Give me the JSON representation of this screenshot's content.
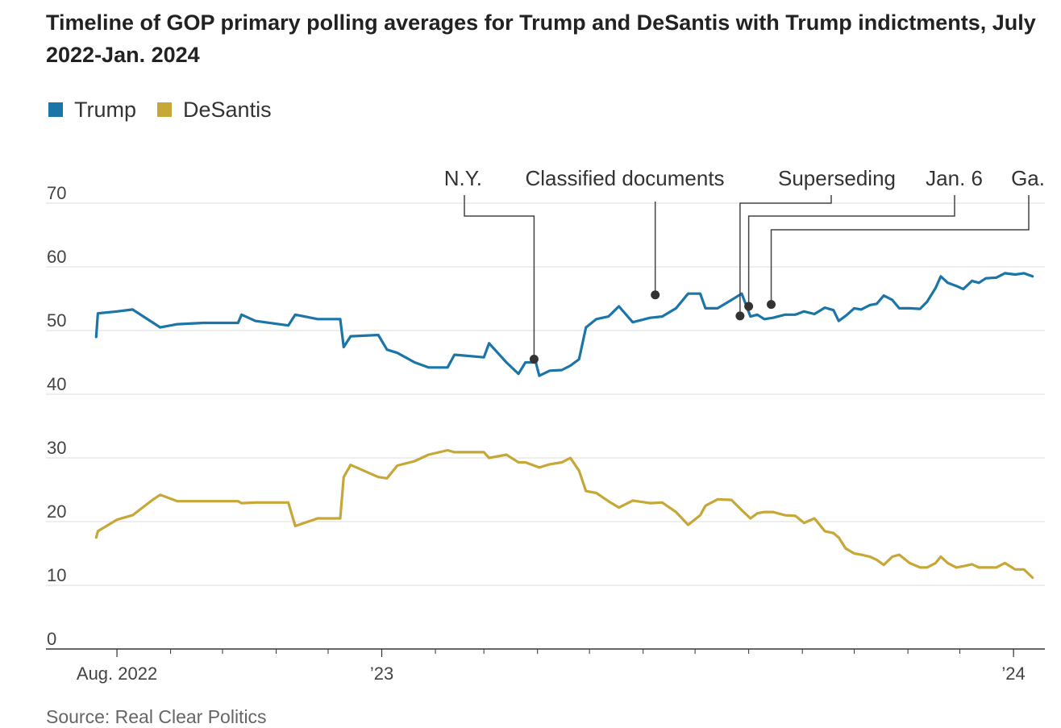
{
  "title": "Timeline of GOP primary polling averages for Trump and DeSantis with Trump indictments, July 2022-Jan. 2024",
  "source": "Source: Real Clear Politics",
  "chart_data": {
    "type": "line",
    "title": "Timeline of GOP primary polling averages for Trump and DeSantis with Trump indictments, July 2022-Jan. 2024",
    "xlabel": "",
    "ylabel": "",
    "ylim": [
      0,
      70
    ],
    "xlim": [
      "2022-07-18",
      "2024-01-14"
    ],
    "grid": true,
    "legend_position": "top-left",
    "y_ticks": [
      "0",
      "10",
      "20",
      "30",
      "40",
      "50",
      "60",
      "70"
    ],
    "x_ticks": [
      {
        "date": "2022-08-01",
        "label": "Aug. 2022"
      },
      {
        "date": "2023-01-01",
        "label": "’23"
      },
      {
        "date": "2024-01-01",
        "label": "’24"
      }
    ],
    "series": [
      {
        "name": "Trump",
        "color": "#1b75a8",
        "points": [
          [
            "2022-07-20",
            49.0
          ],
          [
            "2022-07-21",
            52.7
          ],
          [
            "2022-08-01",
            53.0
          ],
          [
            "2022-08-10",
            53.3
          ],
          [
            "2022-08-22",
            51.2
          ],
          [
            "2022-08-26",
            50.5
          ],
          [
            "2022-09-05",
            51.0
          ],
          [
            "2022-09-20",
            51.2
          ],
          [
            "2022-10-10",
            51.2
          ],
          [
            "2022-10-12",
            52.5
          ],
          [
            "2022-10-20",
            51.5
          ],
          [
            "2022-11-08",
            50.8
          ],
          [
            "2022-11-12",
            52.5
          ],
          [
            "2022-11-25",
            51.8
          ],
          [
            "2022-12-08",
            51.8
          ],
          [
            "2022-12-10",
            47.4
          ],
          [
            "2022-12-14",
            49.1
          ],
          [
            "2022-12-30",
            49.3
          ],
          [
            "2023-01-04",
            47.0
          ],
          [
            "2023-01-10",
            46.5
          ],
          [
            "2023-01-20",
            45.0
          ],
          [
            "2023-01-28",
            44.2
          ],
          [
            "2023-02-08",
            44.2
          ],
          [
            "2023-02-12",
            46.2
          ],
          [
            "2023-03-01",
            45.8
          ],
          [
            "2023-03-04",
            48.0
          ],
          [
            "2023-03-14",
            45.0
          ],
          [
            "2023-03-21",
            43.2
          ],
          [
            "2023-03-25",
            45.0
          ],
          [
            "2023-03-31",
            45.0
          ],
          [
            "2023-04-02",
            42.9
          ],
          [
            "2023-04-08",
            43.7
          ],
          [
            "2023-04-15",
            43.8
          ],
          [
            "2023-04-20",
            44.5
          ],
          [
            "2023-04-25",
            45.5
          ],
          [
            "2023-04-29",
            50.5
          ],
          [
            "2023-05-05",
            51.8
          ],
          [
            "2023-05-12",
            52.2
          ],
          [
            "2023-05-18",
            53.8
          ],
          [
            "2023-05-26",
            51.3
          ],
          [
            "2023-06-05",
            52.0
          ],
          [
            "2023-06-12",
            52.2
          ],
          [
            "2023-06-20",
            53.5
          ],
          [
            "2023-06-27",
            55.8
          ],
          [
            "2023-07-04",
            55.8
          ],
          [
            "2023-07-07",
            53.5
          ],
          [
            "2023-07-14",
            53.5
          ],
          [
            "2023-07-22",
            54.8
          ],
          [
            "2023-07-28",
            55.8
          ],
          [
            "2023-08-02",
            52.2
          ],
          [
            "2023-08-06",
            52.5
          ],
          [
            "2023-08-10",
            51.8
          ],
          [
            "2023-08-15",
            52.0
          ],
          [
            "2023-08-22",
            52.5
          ],
          [
            "2023-08-28",
            52.5
          ],
          [
            "2023-09-02",
            53.0
          ],
          [
            "2023-09-08",
            52.6
          ],
          [
            "2023-09-14",
            53.6
          ],
          [
            "2023-09-19",
            53.2
          ],
          [
            "2023-09-22",
            51.5
          ],
          [
            "2023-09-26",
            52.3
          ],
          [
            "2023-10-01",
            53.5
          ],
          [
            "2023-10-05",
            53.3
          ],
          [
            "2023-10-10",
            54.0
          ],
          [
            "2023-10-14",
            54.2
          ],
          [
            "2023-10-18",
            55.5
          ],
          [
            "2023-10-23",
            54.8
          ],
          [
            "2023-10-27",
            53.5
          ],
          [
            "2023-11-02",
            53.5
          ],
          [
            "2023-11-08",
            53.4
          ],
          [
            "2023-11-12",
            54.5
          ],
          [
            "2023-11-17",
            56.7
          ],
          [
            "2023-11-20",
            58.5
          ],
          [
            "2023-11-24",
            57.5
          ],
          [
            "2023-11-29",
            57.0
          ],
          [
            "2023-12-03",
            56.5
          ],
          [
            "2023-12-08",
            57.8
          ],
          [
            "2023-12-12",
            57.5
          ],
          [
            "2023-12-16",
            58.2
          ],
          [
            "2023-12-22",
            58.3
          ],
          [
            "2023-12-27",
            59.0
          ],
          [
            "2024-01-02",
            58.8
          ],
          [
            "2024-01-07",
            59.0
          ],
          [
            "2024-01-12",
            58.5
          ]
        ]
      },
      {
        "name": "DeSantis",
        "color": "#c6a738",
        "points": [
          [
            "2022-07-20",
            17.5
          ],
          [
            "2022-07-21",
            18.5
          ],
          [
            "2022-08-01",
            20.3
          ],
          [
            "2022-08-10",
            21.0
          ],
          [
            "2022-08-22",
            23.5
          ],
          [
            "2022-08-26",
            24.2
          ],
          [
            "2022-09-05",
            23.2
          ],
          [
            "2022-09-20",
            23.2
          ],
          [
            "2022-10-10",
            23.2
          ],
          [
            "2022-10-12",
            22.9
          ],
          [
            "2022-10-20",
            23.0
          ],
          [
            "2022-11-08",
            23.0
          ],
          [
            "2022-11-12",
            19.3
          ],
          [
            "2022-11-25",
            20.5
          ],
          [
            "2022-12-08",
            20.5
          ],
          [
            "2022-12-10",
            27.0
          ],
          [
            "2022-12-14",
            28.9
          ],
          [
            "2022-12-30",
            27.0
          ],
          [
            "2023-01-04",
            26.8
          ],
          [
            "2023-01-10",
            28.8
          ],
          [
            "2023-01-20",
            29.5
          ],
          [
            "2023-01-28",
            30.5
          ],
          [
            "2023-02-08",
            31.2
          ],
          [
            "2023-02-12",
            30.9
          ],
          [
            "2023-03-01",
            30.9
          ],
          [
            "2023-03-04",
            30.0
          ],
          [
            "2023-03-14",
            30.5
          ],
          [
            "2023-03-21",
            29.3
          ],
          [
            "2023-03-25",
            29.3
          ],
          [
            "2023-03-31",
            28.7
          ],
          [
            "2023-04-02",
            28.5
          ],
          [
            "2023-04-08",
            29.0
          ],
          [
            "2023-04-15",
            29.3
          ],
          [
            "2023-04-20",
            30.0
          ],
          [
            "2023-04-25",
            28.0
          ],
          [
            "2023-04-29",
            24.8
          ],
          [
            "2023-05-05",
            24.5
          ],
          [
            "2023-05-12",
            23.2
          ],
          [
            "2023-05-18",
            22.2
          ],
          [
            "2023-05-26",
            23.3
          ],
          [
            "2023-06-05",
            22.9
          ],
          [
            "2023-06-12",
            23.0
          ],
          [
            "2023-06-20",
            21.5
          ],
          [
            "2023-06-27",
            19.5
          ],
          [
            "2023-07-04",
            21.0
          ],
          [
            "2023-07-07",
            22.5
          ],
          [
            "2023-07-14",
            23.5
          ],
          [
            "2023-07-22",
            23.4
          ],
          [
            "2023-07-28",
            21.8
          ],
          [
            "2023-08-02",
            20.5
          ],
          [
            "2023-08-06",
            21.3
          ],
          [
            "2023-08-10",
            21.5
          ],
          [
            "2023-08-15",
            21.5
          ],
          [
            "2023-08-22",
            21.0
          ],
          [
            "2023-08-28",
            20.9
          ],
          [
            "2023-09-02",
            19.8
          ],
          [
            "2023-09-08",
            20.5
          ],
          [
            "2023-09-14",
            18.5
          ],
          [
            "2023-09-19",
            18.2
          ],
          [
            "2023-09-22",
            17.5
          ],
          [
            "2023-09-26",
            15.8
          ],
          [
            "2023-10-01",
            15.0
          ],
          [
            "2023-10-05",
            14.8
          ],
          [
            "2023-10-10",
            14.5
          ],
          [
            "2023-10-14",
            14.0
          ],
          [
            "2023-10-18",
            13.2
          ],
          [
            "2023-10-23",
            14.5
          ],
          [
            "2023-10-27",
            14.8
          ],
          [
            "2023-11-02",
            13.5
          ],
          [
            "2023-11-08",
            12.8
          ],
          [
            "2023-11-12",
            12.8
          ],
          [
            "2023-11-17",
            13.5
          ],
          [
            "2023-11-20",
            14.5
          ],
          [
            "2023-11-24",
            13.5
          ],
          [
            "2023-11-29",
            12.8
          ],
          [
            "2023-12-03",
            13.0
          ],
          [
            "2023-12-08",
            13.3
          ],
          [
            "2023-12-12",
            12.8
          ],
          [
            "2023-12-16",
            12.8
          ],
          [
            "2023-12-22",
            12.8
          ],
          [
            "2023-12-27",
            13.5
          ],
          [
            "2024-01-02",
            12.5
          ],
          [
            "2024-01-07",
            12.5
          ],
          [
            "2024-01-12",
            11.2
          ]
        ]
      }
    ],
    "annotations": [
      {
        "label": "N.Y.",
        "date": "2023-03-30",
        "value": 45.5
      },
      {
        "label": "Classified documents",
        "date": "2023-06-08",
        "value": 55.6
      },
      {
        "label": "Superseding",
        "date": "2023-07-27",
        "value": 52.3
      },
      {
        "label": "Jan. 6",
        "date": "2023-08-01",
        "value": 53.8
      },
      {
        "label": "Ga.",
        "date": "2023-08-14",
        "value": 54.1
      }
    ]
  }
}
